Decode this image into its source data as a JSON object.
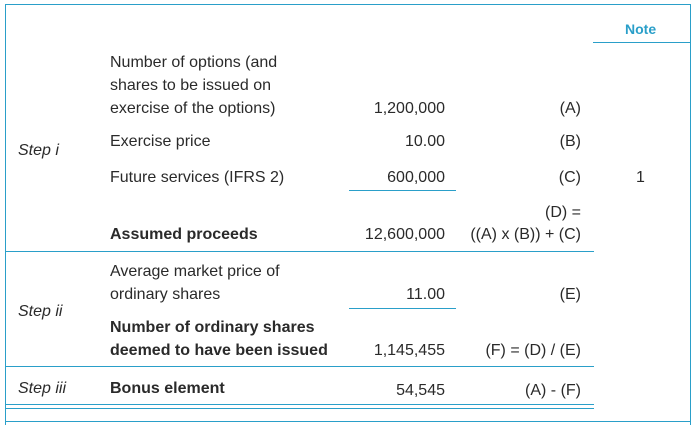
{
  "table": {
    "note_header": "Note",
    "steps": {
      "step_i": "Step i",
      "step_ii": "Step ii",
      "step_iii": "Step iii"
    },
    "rows": [
      {
        "label_lines": [
          "Number of options (and",
          "shares to be issued on",
          "exercise of the options)"
        ],
        "value": "1,200,000",
        "ref": "(A)",
        "note": ""
      },
      {
        "label_lines": [
          "Exercise price"
        ],
        "value": "10.00",
        "ref": "(B)",
        "note": ""
      },
      {
        "label_lines": [
          "Future services (IFRS 2)"
        ],
        "value": "600,000",
        "ref": "(C)",
        "note": "1"
      },
      {
        "label_lines": [
          "Assumed proceeds"
        ],
        "value": "12,600,000",
        "ref_lines": [
          "(D) =",
          "((A) x (B)) + (C)"
        ],
        "note": ""
      },
      {
        "label_lines": [
          "Average market price of",
          "ordinary shares"
        ],
        "value": "11.00",
        "ref": "(E)",
        "note": ""
      },
      {
        "label_lines": [
          "Number of ordinary shares",
          "deemed to have been issued"
        ],
        "value": "1,145,455",
        "ref": "(F) = (D) / (E)",
        "note": ""
      },
      {
        "label_lines": [
          "Bonus element"
        ],
        "value": "54,545",
        "ref": "(A) - (F)",
        "note": ""
      }
    ]
  }
}
